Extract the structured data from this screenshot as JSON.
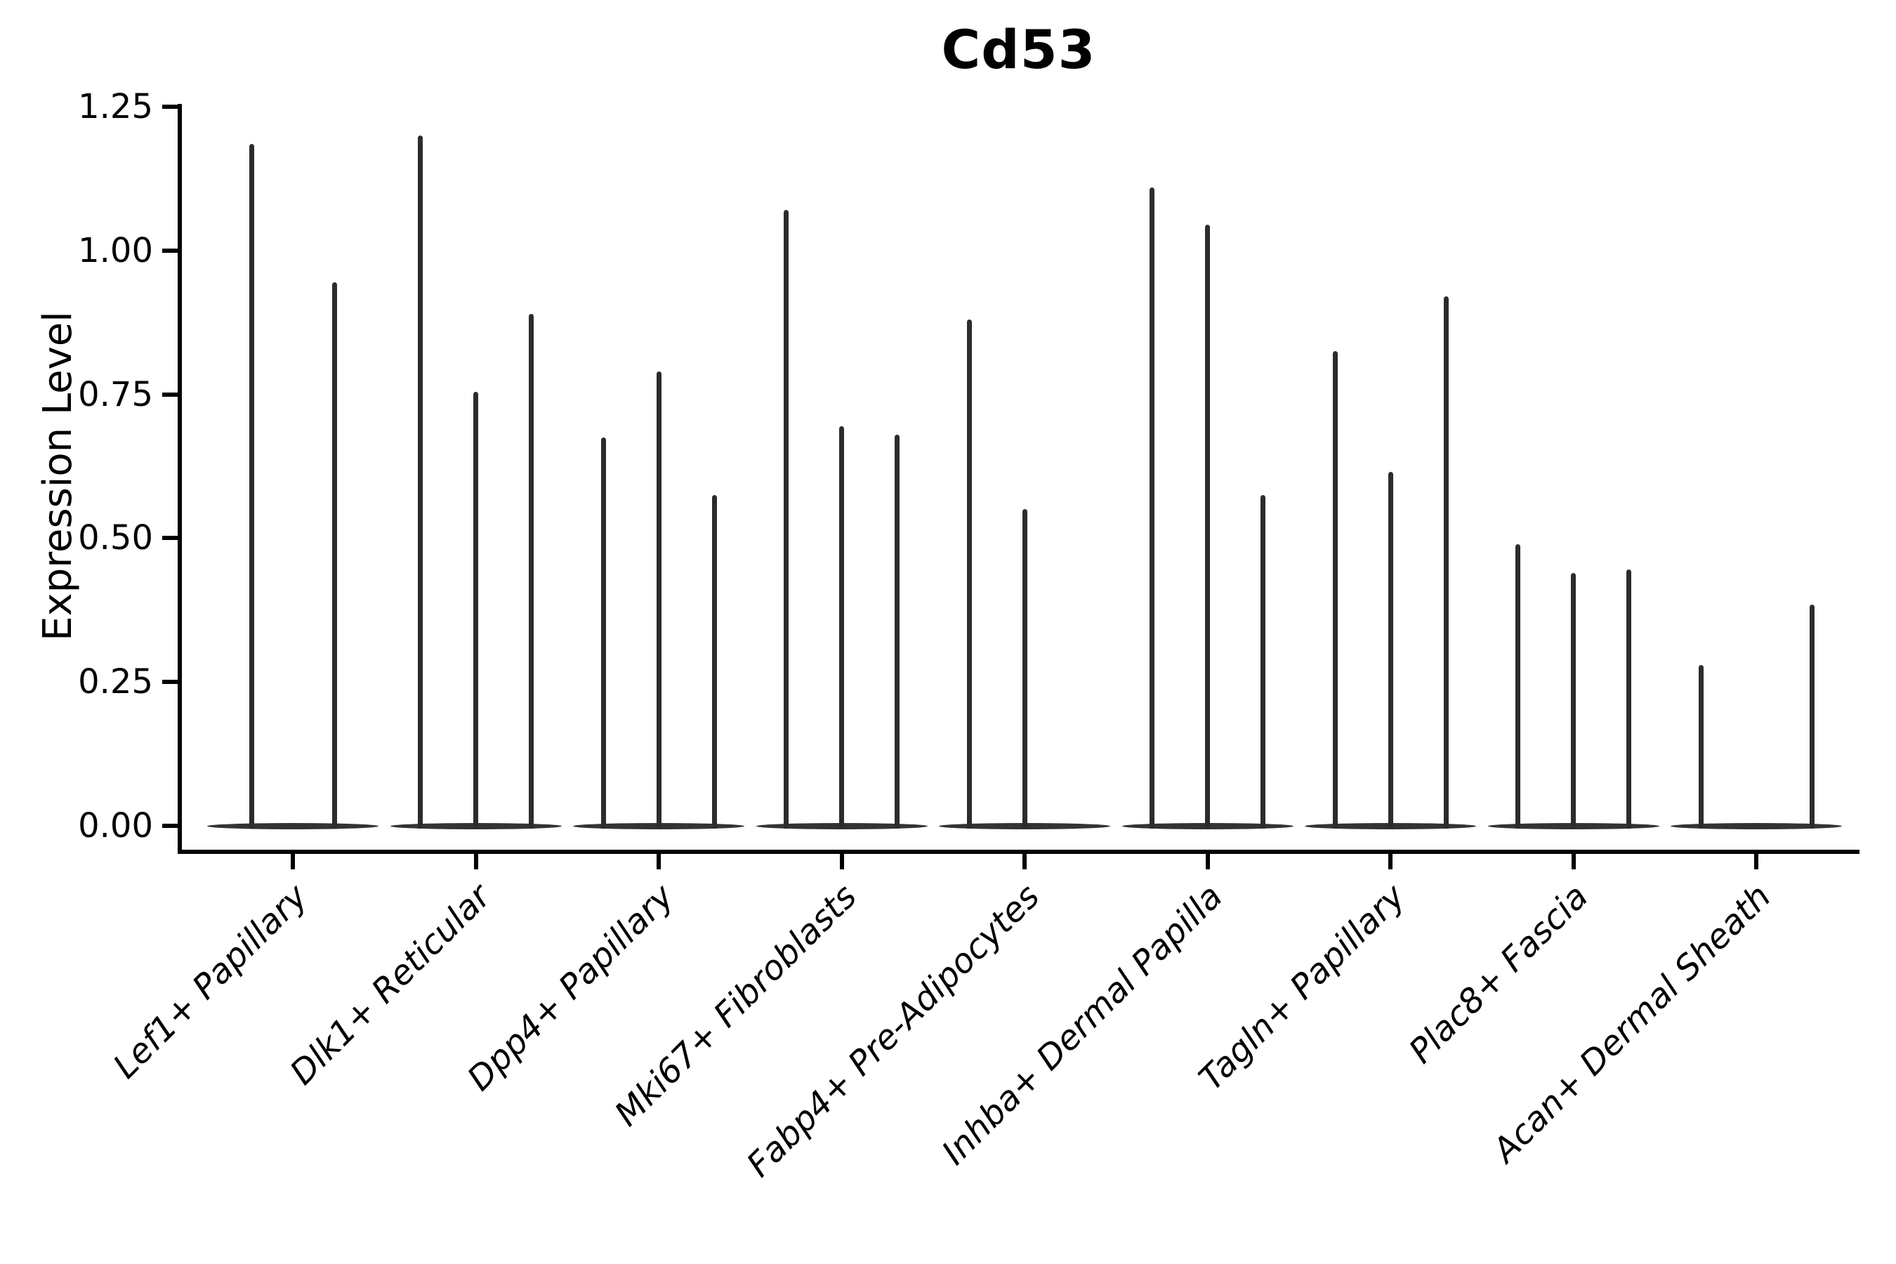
{
  "title": "Cd53",
  "y_axis": {
    "label": "Expression Level",
    "tick_labels": [
      "0.00",
      "0.25",
      "0.50",
      "0.75",
      "1.00",
      "1.25"
    ],
    "tick_values": [
      0,
      0.25,
      0.5,
      0.75,
      1.0,
      1.25
    ]
  },
  "chart_data": {
    "type": "violin",
    "title": "Cd53",
    "xlabel": "",
    "ylabel": "Expression Level",
    "ylim": [
      0,
      1.25
    ],
    "grid": false,
    "legend": "none",
    "style": {
      "ink_color": "#2c2c2c",
      "spine_color": "#000000",
      "background": "#ffffff"
    },
    "note": "Needle-thin violins: flat density at 0 with a spike to the max expression; up to 3 violins (replicates) per cell-type category.",
    "categories": [
      "Lef1+ Papillary",
      "Dlk1+ Reticular",
      "Dpp4+ Papillary",
      "Mki67+ Fibroblasts",
      "Fabp4+ Pre-Adipocytes",
      "Inhba+ Dermal Papilla",
      "Tagln+ Papillary",
      "Plac8+ Fascia",
      "Acan+ Dermal Sheath"
    ],
    "groups": [
      {
        "category": "Lef1+ Papillary",
        "slots": 2,
        "violins": [
          {
            "slot": 0,
            "peak": 1.185
          },
          {
            "slot": 1,
            "peak": 0.945
          }
        ]
      },
      {
        "category": "Dlk1+ Reticular",
        "slots": 3,
        "violins": [
          {
            "slot": 0,
            "peak": 1.2
          },
          {
            "slot": 1,
            "peak": 0.755
          },
          {
            "slot": 2,
            "peak": 0.89
          }
        ]
      },
      {
        "category": "Dpp4+ Papillary",
        "slots": 3,
        "violins": [
          {
            "slot": 0,
            "peak": 0.675
          },
          {
            "slot": 1,
            "peak": 0.79
          },
          {
            "slot": 2,
            "peak": 0.575
          }
        ]
      },
      {
        "category": "Mki67+ Fibroblasts",
        "slots": 3,
        "violins": [
          {
            "slot": 0,
            "peak": 1.07
          },
          {
            "slot": 1,
            "peak": 0.695
          },
          {
            "slot": 2,
            "peak": 0.68
          }
        ]
      },
      {
        "category": "Fabp4+ Pre-Adipocytes",
        "slots": 3,
        "violins": [
          {
            "slot": 0,
            "peak": 0.88
          },
          {
            "slot": 1,
            "peak": 0.55
          }
        ]
      },
      {
        "category": "Inhba+ Dermal Papilla",
        "slots": 3,
        "violins": [
          {
            "slot": 0,
            "peak": 1.11
          },
          {
            "slot": 1,
            "peak": 1.045
          },
          {
            "slot": 2,
            "peak": 0.575
          }
        ]
      },
      {
        "category": "Tagln+ Papillary",
        "slots": 3,
        "violins": [
          {
            "slot": 0,
            "peak": 0.825
          },
          {
            "slot": 1,
            "peak": 0.615
          },
          {
            "slot": 2,
            "peak": 0.92
          }
        ]
      },
      {
        "category": "Plac8+ Fascia",
        "slots": 3,
        "violins": [
          {
            "slot": 0,
            "peak": 0.49
          },
          {
            "slot": 1,
            "peak": 0.44
          },
          {
            "slot": 2,
            "peak": 0.445
          }
        ]
      },
      {
        "category": "Acan+ Dermal Sheath",
        "slots": 3,
        "violins": [
          {
            "slot": 0,
            "peak": 0.28
          },
          {
            "slot": 2,
            "peak": 0.385
          }
        ]
      }
    ]
  }
}
